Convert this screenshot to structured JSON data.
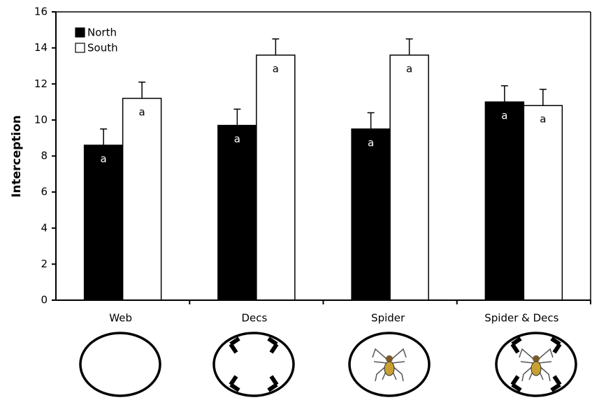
{
  "chart_data": {
    "type": "bar",
    "y_label": "Interception",
    "categories": [
      "Web",
      "Decs",
      "Spider",
      "Spider & Decs"
    ],
    "series": [
      {
        "name": "North",
        "color": "#000000",
        "values": [
          8.6,
          9.7,
          9.5,
          11.0
        ],
        "errors": [
          0.9,
          0.9,
          0.9,
          0.9
        ],
        "labels": [
          "a",
          "a",
          "a",
          "a"
        ]
      },
      {
        "name": "South",
        "color": "#ffffff",
        "values": [
          11.2,
          13.6,
          13.6,
          10.8
        ],
        "errors": [
          0.9,
          0.9,
          0.9,
          0.9
        ],
        "labels": [
          "a",
          "a",
          "a",
          "a"
        ]
      }
    ],
    "ylim": [
      0,
      16
    ],
    "yticks": [
      0,
      2,
      4,
      6,
      8,
      10,
      12,
      14,
      16
    ],
    "legend": "top-left"
  }
}
